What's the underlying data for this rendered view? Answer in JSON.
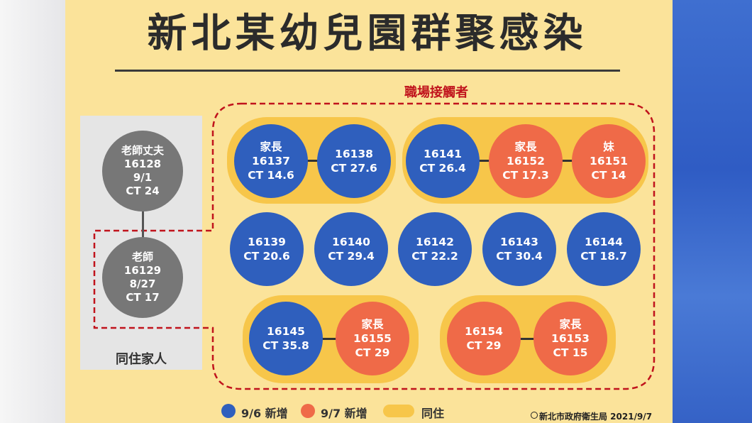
{
  "title": "新北某幼兒園群聚感染",
  "workplace_label": "職場接觸者",
  "household_label": "同住家人",
  "household": [
    {
      "lines": [
        "老師丈夫",
        "16128",
        "9/1",
        "CT 24"
      ]
    },
    {
      "lines": [
        "老師",
        "16129",
        "8/27",
        "CT 17"
      ]
    }
  ],
  "nodes": {
    "n16137": {
      "lines": [
        "家長",
        "16137",
        "CT 14.6"
      ],
      "group": "9/6"
    },
    "n16138": {
      "lines": [
        "16138",
        "CT 27.6"
      ],
      "group": "9/6"
    },
    "n16141": {
      "lines": [
        "16141",
        "CT 26.4"
      ],
      "group": "9/6"
    },
    "n16152": {
      "lines": [
        "家長",
        "16152",
        "CT 17.3"
      ],
      "group": "9/7"
    },
    "n16151": {
      "lines": [
        "妹",
        "16151",
        "CT 14"
      ],
      "group": "9/7"
    },
    "n16139": {
      "lines": [
        "16139",
        "CT 20.6"
      ],
      "group": "9/6"
    },
    "n16140": {
      "lines": [
        "16140",
        "CT 29.4"
      ],
      "group": "9/6"
    },
    "n16142": {
      "lines": [
        "16142",
        "CT 22.2"
      ],
      "group": "9/6"
    },
    "n16143": {
      "lines": [
        "16143",
        "CT 30.4"
      ],
      "group": "9/6"
    },
    "n16144": {
      "lines": [
        "16144",
        "CT 18.7"
      ],
      "group": "9/6"
    },
    "n16145": {
      "lines": [
        "16145",
        "CT 35.8"
      ],
      "group": "9/6"
    },
    "n16155": {
      "lines": [
        "家長",
        "16155",
        "CT 29"
      ],
      "group": "9/7"
    },
    "n16154": {
      "lines": [
        "16154",
        "CT 29"
      ],
      "group": "9/7"
    },
    "n16153": {
      "lines": [
        "家長",
        "16153",
        "CT 15"
      ],
      "group": "9/7"
    }
  },
  "legend": {
    "new_96": "9/6 新增",
    "new_97": "9/7 新增",
    "cohabit": "同住"
  },
  "colors": {
    "new_96": "#2f5fbd",
    "new_97": "#ef6a48",
    "cohabit": "#f7c64a",
    "household": "#777777",
    "dash": "#c0131c"
  },
  "source": "新北市政府衛生局 2021/9/7"
}
